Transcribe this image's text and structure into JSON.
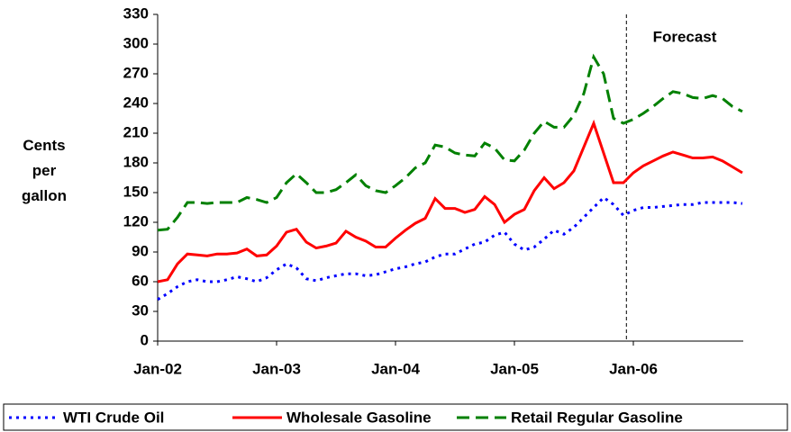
{
  "chart_data": {
    "type": "line",
    "y_label": "Cents per gallon",
    "annotation": "Forecast",
    "categories": [
      "Jan-02",
      null,
      null,
      null,
      null,
      null,
      null,
      null,
      null,
      null,
      null,
      null,
      "Jan-03",
      null,
      null,
      null,
      null,
      null,
      null,
      null,
      null,
      null,
      null,
      null,
      "Jan-04",
      null,
      null,
      null,
      null,
      null,
      null,
      null,
      null,
      null,
      null,
      null,
      "Jan-05",
      null,
      null,
      null,
      null,
      null,
      null,
      null,
      null,
      null,
      null,
      null,
      "Jan-06",
      null,
      null,
      null,
      null,
      null,
      null,
      null,
      null,
      null,
      null,
      null
    ],
    "series": [
      {
        "name": "WTI Crude Oil",
        "color": "#0000ff",
        "dash": "3,5",
        "values": [
          42,
          48,
          55,
          60,
          62,
          60,
          60,
          62,
          65,
          63,
          60,
          64,
          72,
          78,
          74,
          63,
          61,
          64,
          66,
          68,
          68,
          66,
          67,
          70,
          73,
          75,
          78,
          80,
          85,
          88,
          88,
          93,
          98,
          100,
          107,
          110,
          98,
          92,
          95,
          103,
          112,
          108,
          115,
          125,
          135,
          145,
          138,
          127,
          132,
          135,
          135,
          136,
          137,
          138,
          138,
          140,
          140,
          140,
          140,
          139
        ]
      },
      {
        "name": "Wholesale Gasoline",
        "color": "#ff0000",
        "dash": "none",
        "values": [
          60,
          62,
          78,
          88,
          87,
          86,
          88,
          88,
          89,
          93,
          86,
          87,
          96,
          110,
          113,
          100,
          94,
          96,
          99,
          111,
          105,
          101,
          95,
          95,
          104,
          112,
          119,
          124,
          144,
          134,
          134,
          130,
          133,
          146,
          138,
          120,
          128,
          133,
          152,
          165,
          154,
          160,
          172,
          196,
          220,
          190,
          160,
          160,
          170,
          177,
          182,
          187,
          191,
          188,
          185,
          185,
          186,
          182,
          176,
          170
        ]
      },
      {
        "name": "Retail Regular Gasoline",
        "color": "#008000",
        "dash": "14,7",
        "values": [
          112,
          113,
          125,
          140,
          140,
          139,
          140,
          140,
          140,
          145,
          143,
          140,
          145,
          160,
          169,
          160,
          150,
          150,
          153,
          160,
          168,
          157,
          152,
          150,
          157,
          165,
          175,
          180,
          198,
          196,
          190,
          188,
          187,
          200,
          195,
          183,
          182,
          193,
          210,
          222,
          216,
          216,
          228,
          250,
          287,
          270,
          225,
          220,
          224,
          230,
          237,
          245,
          252,
          250,
          246,
          245,
          248,
          245,
          237,
          232
        ]
      }
    ],
    "ylim": [
      0,
      330
    ],
    "yticks": [
      0,
      30,
      60,
      90,
      120,
      150,
      180,
      210,
      240,
      270,
      300,
      330
    ]
  }
}
